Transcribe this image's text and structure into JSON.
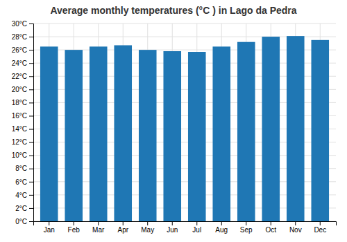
{
  "chart_data": {
    "type": "bar",
    "title": "Average monthly temperatures (°C ) in Lago da Pedra",
    "categories": [
      "Jan",
      "Feb",
      "Mar",
      "Apr",
      "May",
      "Jun",
      "Jul",
      "Aug",
      "Sep",
      "Oct",
      "Nov",
      "Dec"
    ],
    "values": [
      26.5,
      26.0,
      26.5,
      26.7,
      26.0,
      25.8,
      25.7,
      26.5,
      27.2,
      28.0,
      28.1,
      27.5
    ],
    "ylim": [
      0,
      30
    ],
    "yticks": [
      {
        "value": 0,
        "label": "0°C"
      },
      {
        "value": 2,
        "label": "2°C"
      },
      {
        "value": 4,
        "label": "4°C"
      },
      {
        "value": 6,
        "label": "6°C"
      },
      {
        "value": 8,
        "label": "8°C"
      },
      {
        "value": 10,
        "label": "10°C"
      },
      {
        "value": 12,
        "label": "12°C"
      },
      {
        "value": 14,
        "label": "14°C"
      },
      {
        "value": 16,
        "label": "16°C"
      },
      {
        "value": 18,
        "label": "18°C"
      },
      {
        "value": 20,
        "label": "20°C"
      },
      {
        "value": 22,
        "label": "22°C"
      },
      {
        "value": 24,
        "label": "24°C"
      },
      {
        "value": 26,
        "label": "26°C"
      },
      {
        "value": 28,
        "label": "28°C"
      },
      {
        "value": 30,
        "label": "30°C"
      }
    ],
    "grid": true
  }
}
